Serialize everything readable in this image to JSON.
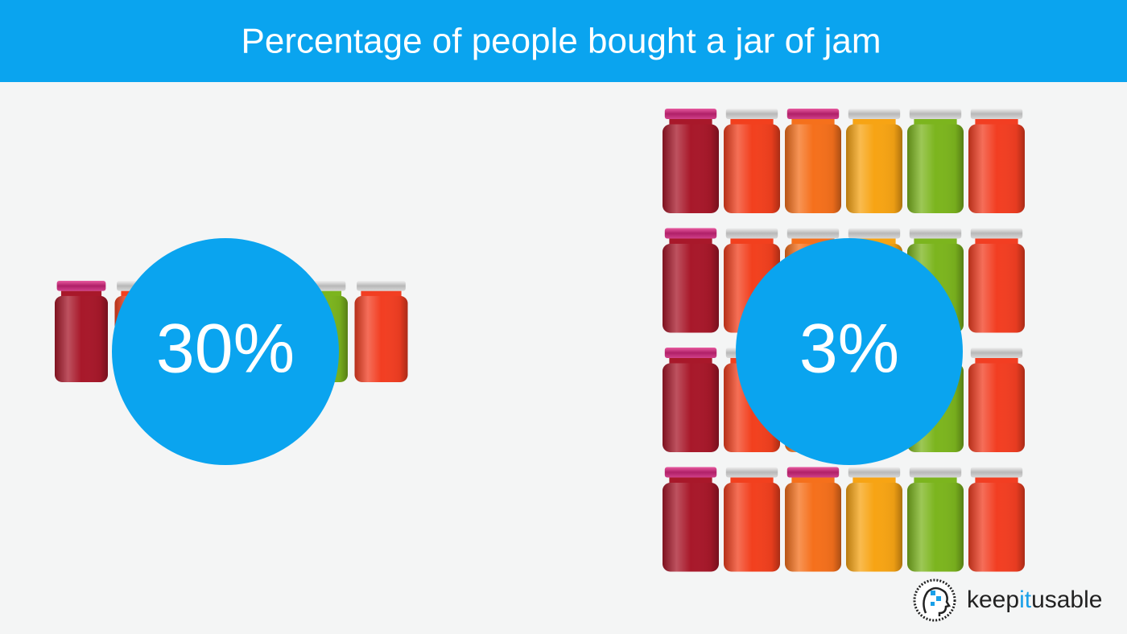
{
  "header": {
    "title": "Percentage of people bought a jar of jam"
  },
  "panels": [
    {
      "label": "30%"
    },
    {
      "label": "3%"
    }
  ],
  "logo": {
    "parts": [
      "keep",
      "it",
      "usable"
    ]
  }
}
